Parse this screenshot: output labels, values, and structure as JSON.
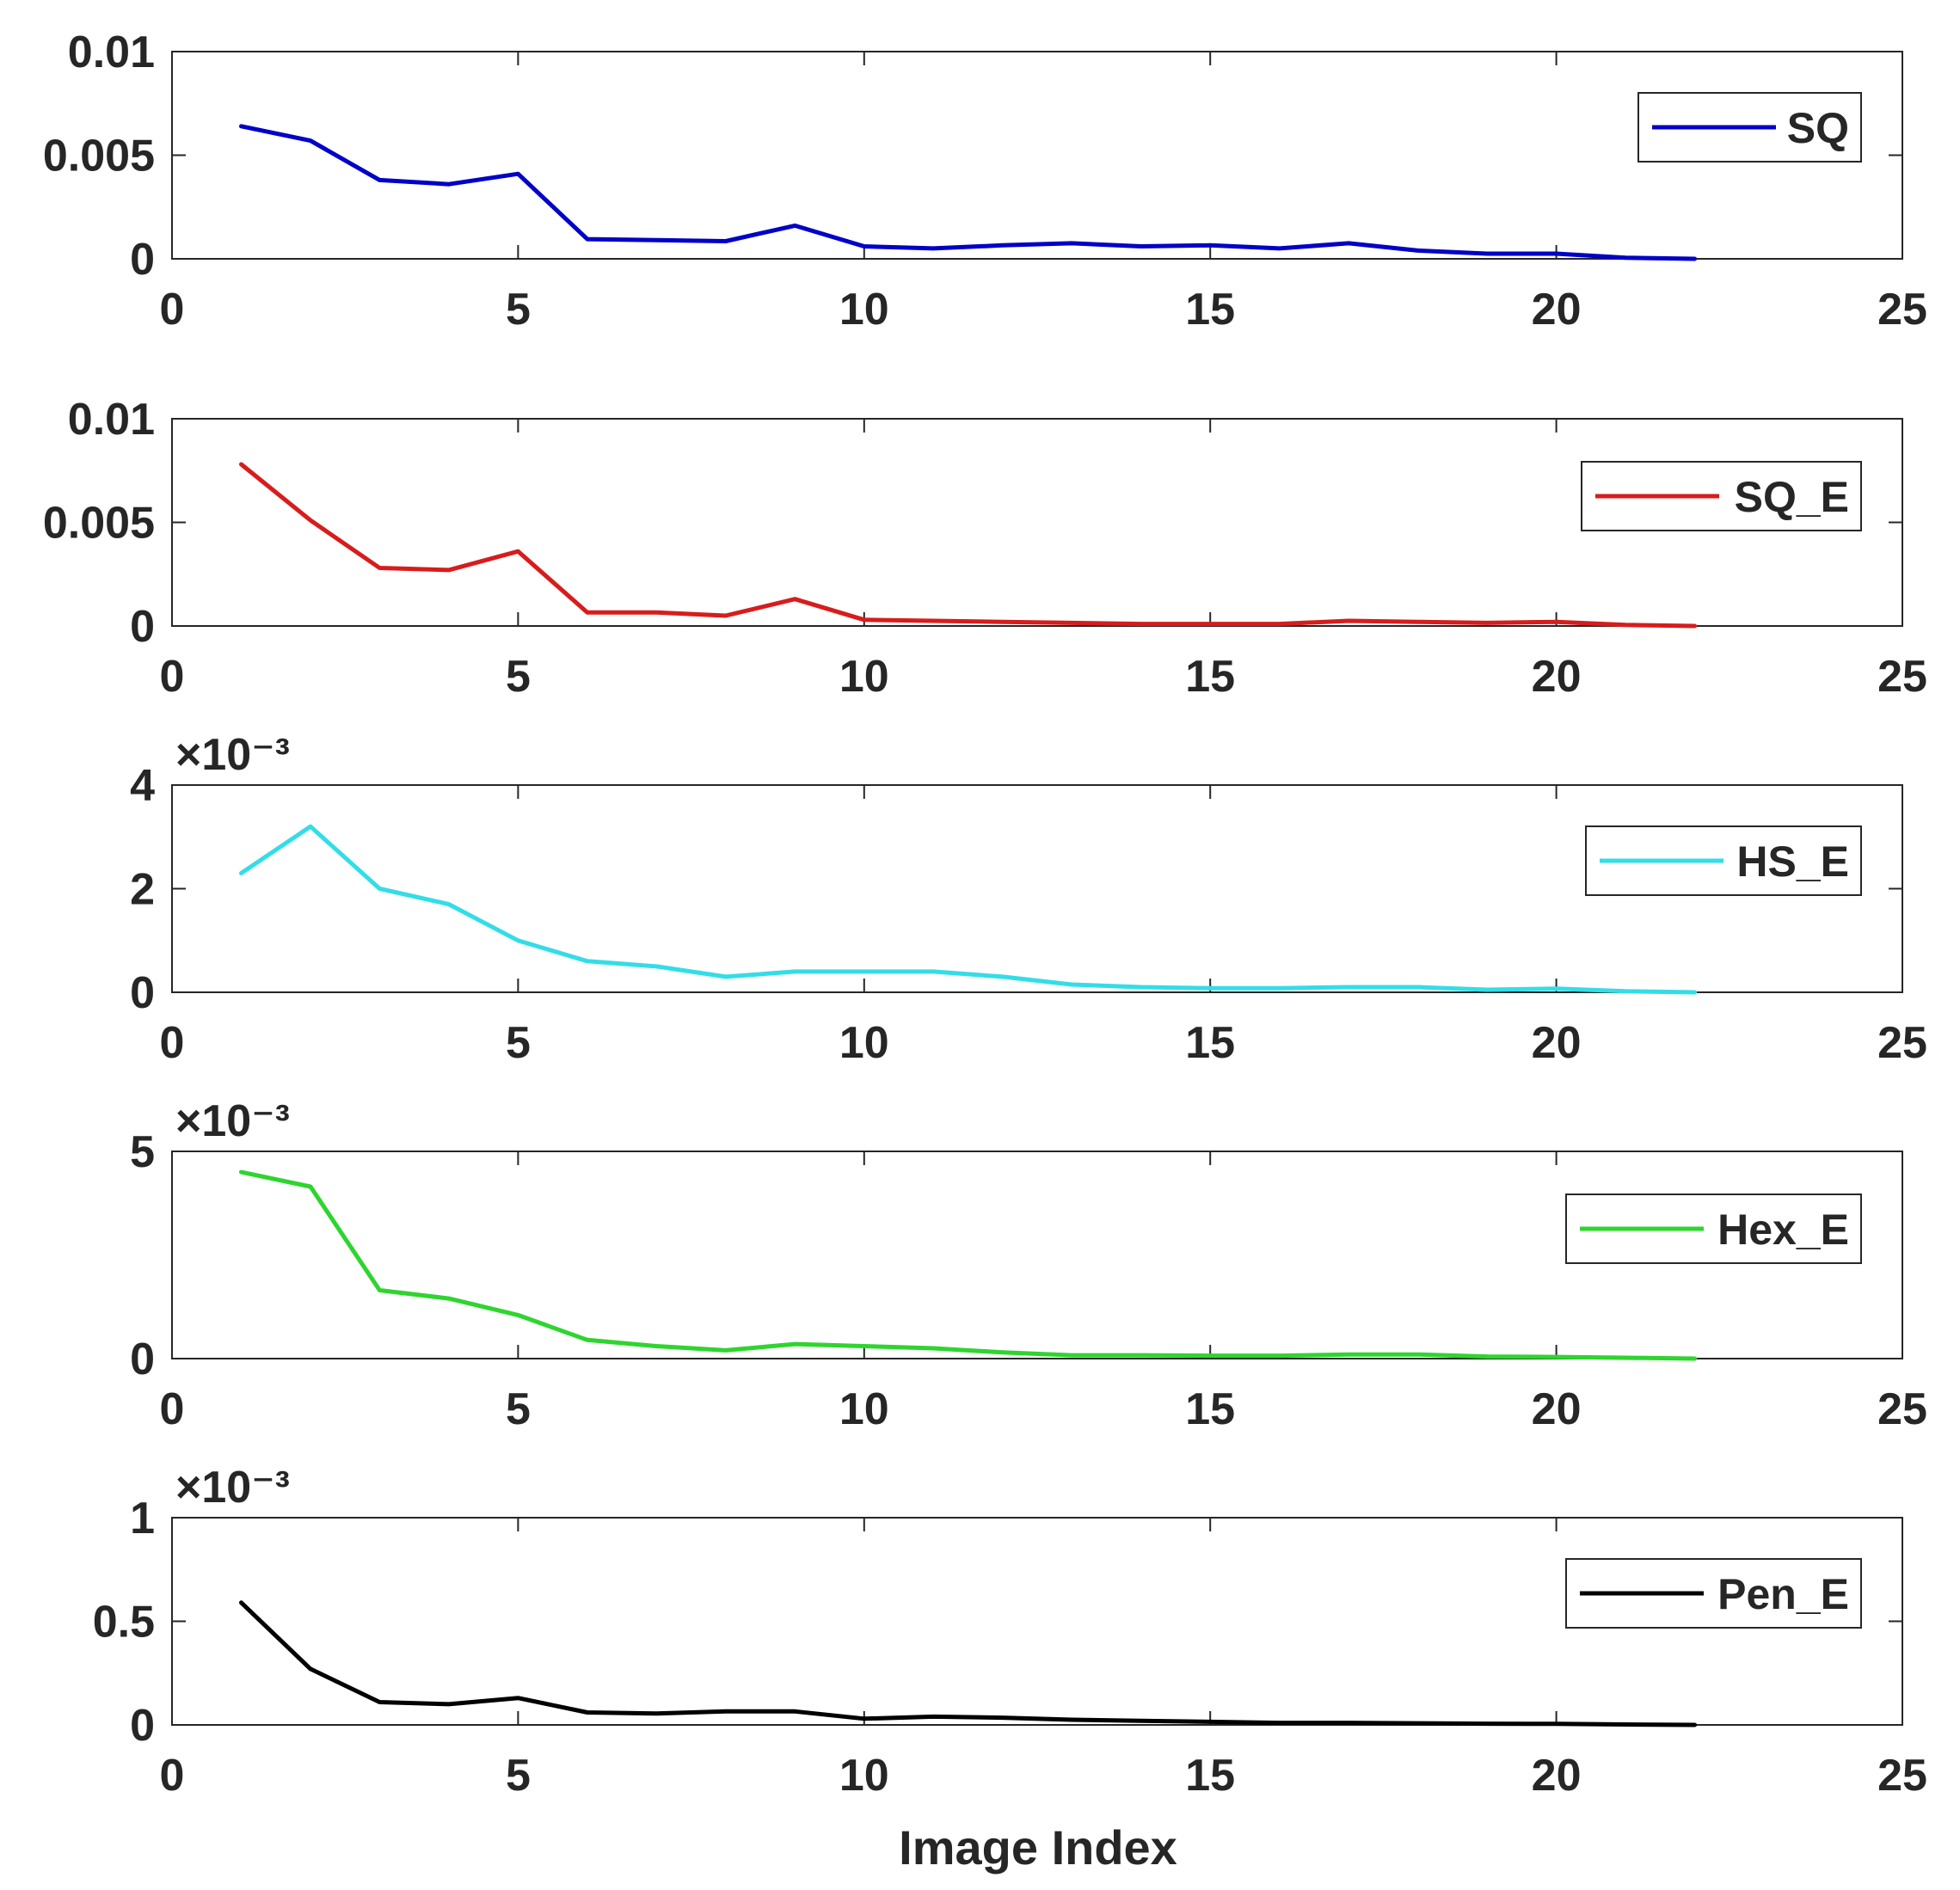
{
  "figure": {
    "xlabel": "Image Index"
  },
  "chart_data": [
    {
      "type": "line",
      "name": "SQ",
      "legend": "SQ",
      "color": "#0000c8",
      "legend_position": "top-right",
      "exponent_label": "",
      "x": [
        1,
        2,
        3,
        4,
        5,
        6,
        7,
        8,
        9,
        10,
        11,
        12,
        13,
        14,
        15,
        16,
        17,
        18,
        19,
        20,
        21,
        22
      ],
      "values": [
        0.0064,
        0.0057,
        0.0038,
        0.0036,
        0.0041,
        0.00095,
        0.0009,
        0.00085,
        0.0016,
        0.0006,
        0.0005,
        0.00065,
        0.00075,
        0.0006,
        0.00065,
        0.0005,
        0.00075,
        0.0004,
        0.00025,
        0.00025,
        5e-05,
        0.0
      ],
      "xlim": [
        0,
        25
      ],
      "ylim": [
        0,
        0.01
      ],
      "xticks": [
        "0",
        "5",
        "10",
        "15",
        "20",
        "25"
      ],
      "yticks": [
        {
          "value": 0,
          "label": "0"
        },
        {
          "value": 0.005,
          "label": "0.005"
        },
        {
          "value": 0.01,
          "label": "0.01"
        }
      ]
    },
    {
      "type": "line",
      "name": "SQ_E",
      "legend": "SQ_E",
      "color": "#d81c1c",
      "legend_position": "top-right",
      "exponent_label": "",
      "x": [
        1,
        2,
        3,
        4,
        5,
        6,
        7,
        8,
        9,
        10,
        11,
        12,
        13,
        14,
        15,
        16,
        17,
        18,
        19,
        20,
        21,
        22
      ],
      "values": [
        0.0078,
        0.0051,
        0.0028,
        0.0027,
        0.0036,
        0.00065,
        0.00065,
        0.0005,
        0.0013,
        0.0003,
        0.00025,
        0.0002,
        0.00015,
        0.0001,
        0.0001,
        0.0001,
        0.00025,
        0.0002,
        0.00015,
        0.0002,
        5e-05,
        0.0
      ],
      "xlim": [
        0,
        25
      ],
      "ylim": [
        0,
        0.01
      ],
      "xticks": [
        "0",
        "5",
        "10",
        "15",
        "20",
        "25"
      ],
      "yticks": [
        {
          "value": 0,
          "label": "0"
        },
        {
          "value": 0.005,
          "label": "0.005"
        },
        {
          "value": 0.01,
          "label": "0.01"
        }
      ]
    },
    {
      "type": "line",
      "name": "HS_E",
      "legend": "HS_E",
      "color": "#33dde8",
      "legend_position": "top-right",
      "exponent_label": "×10⁻³",
      "x": [
        1,
        2,
        3,
        4,
        5,
        6,
        7,
        8,
        9,
        10,
        11,
        12,
        13,
        14,
        15,
        16,
        17,
        18,
        19,
        20,
        21,
        22
      ],
      "values": [
        2.3,
        3.2,
        2.0,
        1.7,
        1.0,
        0.6,
        0.5,
        0.3,
        0.4,
        0.4,
        0.4,
        0.3,
        0.15,
        0.1,
        0.08,
        0.08,
        0.1,
        0.1,
        0.05,
        0.07,
        0.02,
        0.0
      ],
      "xlim": [
        0,
        25
      ],
      "ylim": [
        0,
        4
      ],
      "xticks": [
        "0",
        "5",
        "10",
        "15",
        "20",
        "25"
      ],
      "yticks": [
        {
          "value": 0,
          "label": "0"
        },
        {
          "value": 2,
          "label": "2"
        },
        {
          "value": 4,
          "label": "4"
        }
      ]
    },
    {
      "type": "line",
      "name": "Hex_E",
      "legend": "Hex_E",
      "color": "#2ed52e",
      "legend_position": "top-right",
      "exponent_label": "×10⁻³",
      "x": [
        1,
        2,
        3,
        4,
        5,
        6,
        7,
        8,
        9,
        10,
        11,
        12,
        13,
        14,
        15,
        16,
        17,
        18,
        19,
        20,
        21,
        22
      ],
      "values": [
        4.5,
        4.15,
        1.65,
        1.45,
        1.05,
        0.45,
        0.3,
        0.2,
        0.35,
        0.3,
        0.25,
        0.15,
        0.08,
        0.08,
        0.07,
        0.07,
        0.1,
        0.1,
        0.05,
        0.04,
        0.02,
        0.0
      ],
      "xlim": [
        0,
        25
      ],
      "ylim": [
        0,
        5
      ],
      "xticks": [
        "0",
        "5",
        "10",
        "15",
        "20",
        "25"
      ],
      "yticks": [
        {
          "value": 0,
          "label": "0"
        },
        {
          "value": 5,
          "label": "5"
        }
      ]
    },
    {
      "type": "line",
      "name": "Pen_E",
      "legend": "Pen_E",
      "color": "#000000",
      "legend_position": "top-right",
      "exponent_label": "×10⁻³",
      "x": [
        1,
        2,
        3,
        4,
        5,
        6,
        7,
        8,
        9,
        10,
        11,
        12,
        13,
        14,
        15,
        16,
        17,
        18,
        19,
        20,
        21,
        22
      ],
      "values": [
        0.59,
        0.27,
        0.11,
        0.1,
        0.13,
        0.06,
        0.055,
        0.065,
        0.065,
        0.03,
        0.04,
        0.035,
        0.025,
        0.02,
        0.015,
        0.01,
        0.01,
        0.008,
        0.006,
        0.005,
        0.002,
        0.0
      ],
      "xlim": [
        0,
        25
      ],
      "ylim": [
        0,
        1
      ],
      "xticks": [
        "0",
        "5",
        "10",
        "15",
        "20",
        "25"
      ],
      "yticks": [
        {
          "value": 0,
          "label": "0"
        },
        {
          "value": 0.5,
          "label": "0.5"
        },
        {
          "value": 1,
          "label": "1"
        }
      ]
    }
  ]
}
